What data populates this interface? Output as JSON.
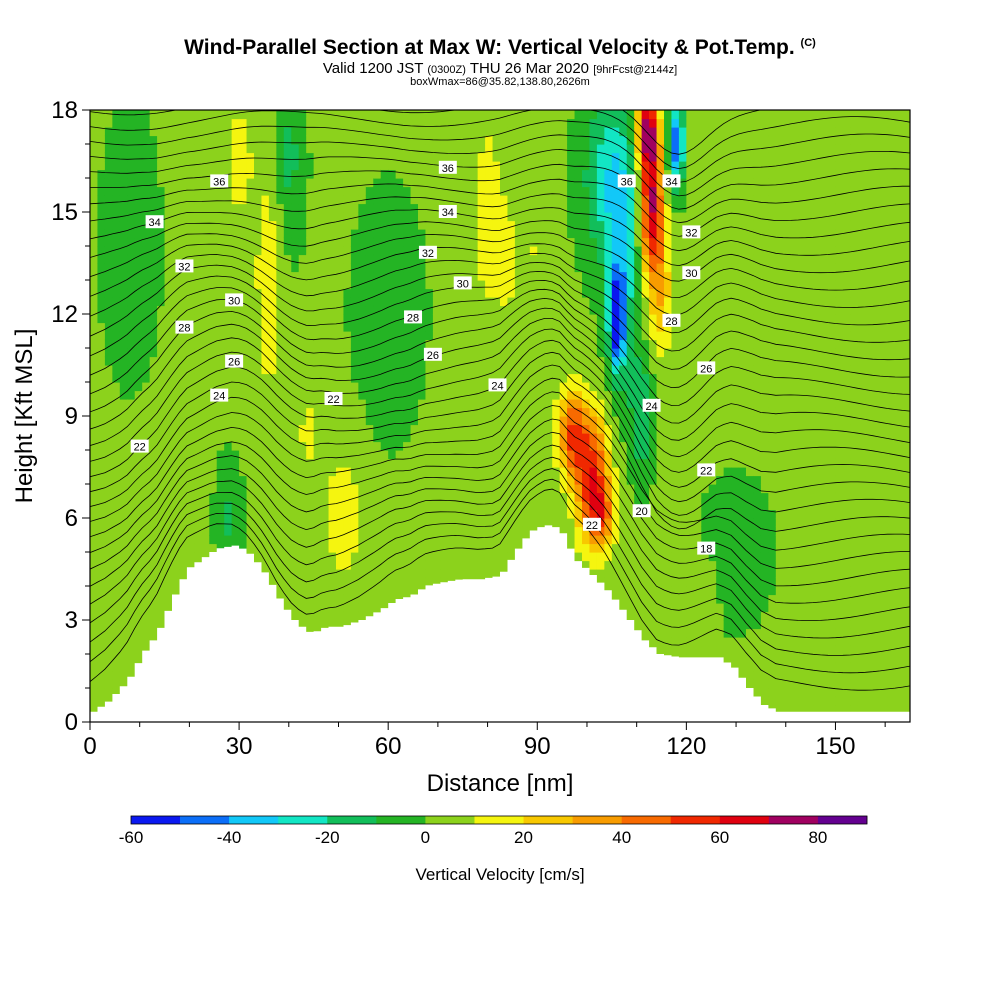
{
  "title": {
    "main": "Wind-Parallel Section at Max W: Vertical Velocity & Pot.Temp.",
    "copyright": "(C)",
    "valid_prefix": "Valid 1200 JST",
    "valid_utc": "(0300Z)",
    "valid_date": "THU 26 Mar 2020",
    "forecast": "[9hrFcst@2144z]",
    "box_info": "boxWmax=86@35.82,138.80,2626m"
  },
  "chart_data": {
    "type": "heatmap",
    "xlabel": "Distance [nm]",
    "ylabel": "Height [Kft MSL]",
    "xlim": [
      0,
      165
    ],
    "ylim": [
      0,
      18
    ],
    "xticks": [
      0,
      30,
      60,
      90,
      120,
      150
    ],
    "yticks": [
      0,
      3,
      6,
      9,
      12,
      15,
      18
    ],
    "colorbar": {
      "label": "Vertical Velocity [cm/s]",
      "range": [
        -60,
        90
      ],
      "step": 10,
      "tick_labels": [
        "-60",
        "-40",
        "-20",
        "0",
        "20",
        "40",
        "60",
        "80"
      ],
      "colors": [
        "#0a18f0",
        "#0b6ef8",
        "#12c8f8",
        "#12e6c4",
        "#12be5a",
        "#24b424",
        "#8cd21c",
        "#f5f50f",
        "#f8c800",
        "#f89c00",
        "#f86a00",
        "#f02800",
        "#e00010",
        "#a00060",
        "#640090"
      ]
    },
    "terrain": [
      [
        0,
        0.3
      ],
      [
        3,
        0.6
      ],
      [
        7,
        1.2
      ],
      [
        10,
        2.0
      ],
      [
        13,
        2.6
      ],
      [
        16,
        3.6
      ],
      [
        19,
        4.5
      ],
      [
        22,
        4.8
      ],
      [
        25,
        5.1
      ],
      [
        29,
        5.2
      ],
      [
        32,
        4.9
      ],
      [
        35,
        4.3
      ],
      [
        38,
        3.5
      ],
      [
        41,
        2.9
      ],
      [
        44,
        2.6
      ],
      [
        47,
        2.8
      ],
      [
        50,
        2.8
      ],
      [
        54,
        3.0
      ],
      [
        58,
        3.3
      ],
      [
        61,
        3.6
      ],
      [
        64,
        3.7
      ],
      [
        67,
        4.0
      ],
      [
        70,
        4.1
      ],
      [
        74,
        4.2
      ],
      [
        78,
        4.2
      ],
      [
        82,
        4.3
      ],
      [
        85,
        5.0
      ],
      [
        88,
        5.6
      ],
      [
        91,
        5.8
      ],
      [
        94,
        5.7
      ],
      [
        97,
        4.8
      ],
      [
        100,
        4.4
      ],
      [
        104,
        3.8
      ],
      [
        108,
        3.0
      ],
      [
        111,
        2.4
      ],
      [
        114,
        2.0
      ],
      [
        118,
        1.9
      ],
      [
        122,
        1.9
      ],
      [
        126,
        1.9
      ],
      [
        129,
        1.6
      ],
      [
        132,
        1.0
      ],
      [
        135,
        0.5
      ],
      [
        138,
        0.3
      ],
      [
        142,
        0.3
      ],
      [
        165,
        0.3
      ]
    ],
    "theta_labels": [
      {
        "x": 26,
        "y": 15.9,
        "text": "36"
      },
      {
        "x": 13,
        "y": 14.7,
        "text": "34"
      },
      {
        "x": 19,
        "y": 13.4,
        "text": "32"
      },
      {
        "x": 29,
        "y": 12.4,
        "text": "30"
      },
      {
        "x": 19,
        "y": 11.6,
        "text": "28"
      },
      {
        "x": 29,
        "y": 10.6,
        "text": "26"
      },
      {
        "x": 26,
        "y": 9.6,
        "text": "24"
      },
      {
        "x": 10,
        "y": 8.1,
        "text": "22"
      },
      {
        "x": 49,
        "y": 9.5,
        "text": "22"
      },
      {
        "x": 72,
        "y": 16.3,
        "text": "36"
      },
      {
        "x": 72,
        "y": 15.0,
        "text": "34"
      },
      {
        "x": 68,
        "y": 13.8,
        "text": "32"
      },
      {
        "x": 75,
        "y": 12.9,
        "text": "30"
      },
      {
        "x": 65,
        "y": 11.9,
        "text": "28"
      },
      {
        "x": 69,
        "y": 10.8,
        "text": "26"
      },
      {
        "x": 82,
        "y": 9.9,
        "text": "24"
      },
      {
        "x": 108,
        "y": 15.9,
        "text": "36"
      },
      {
        "x": 117,
        "y": 15.9,
        "text": "34"
      },
      {
        "x": 121,
        "y": 14.4,
        "text": "32"
      },
      {
        "x": 121,
        "y": 13.2,
        "text": "30"
      },
      {
        "x": 117,
        "y": 11.8,
        "text": "28"
      },
      {
        "x": 124,
        "y": 10.4,
        "text": "26"
      },
      {
        "x": 113,
        "y": 9.3,
        "text": "24"
      },
      {
        "x": 124,
        "y": 7.4,
        "text": "22"
      },
      {
        "x": 111,
        "y": 6.2,
        "text": "20"
      },
      {
        "x": 101,
        "y": 5.8,
        "text": "22"
      },
      {
        "x": 124,
        "y": 5.1,
        "text": "18"
      }
    ]
  }
}
